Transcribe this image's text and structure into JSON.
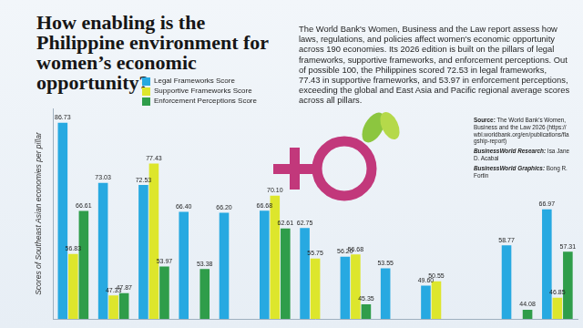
{
  "chart_data": {
    "type": "bar",
    "title": "How enabling is the Philippine environment for women’s economic opportunity?",
    "subtitle": "The World Bank's Women, Business and the Law report assess how laws, regulations, and policies affect women's economic opportunity across 190 economies. Its 2026 edition is built on the pillars of legal frameworks, supportive frameworks, and enforcement perceptions. Out of possible 100, the Philippines scored 72.53 in legal frameworks, 77.43 in supportive frameworks, and 53.97 in enforcement perceptions, exceeding the global and East Asia and Pacific regional average scores across all pillars.",
    "annotations": [
      "Source: The World Bank's Women, Business and the Law 2026 (https://wbl.worldbank.org/en/publications/flagship-report)",
      "BusinessWorld Research: Isa Jane D. Acabal",
      "BusinessWorld Graphics: Bong R. Fortin"
    ],
    "y_label": "Scores of Southeast Asian economies per pillar",
    "categories": [
      null,
      null,
      null,
      null,
      null,
      null,
      null,
      null,
      null,
      null,
      null,
      null,
      null
    ],
    "series": [
      {
        "name": "Legal Frameworks Score",
        "color": "#27a9e1",
        "values": [
          86.73,
          73.03,
          72.53,
          66.4,
          66.2,
          66.68,
          62.75,
          56.2,
          53.55,
          49.6,
          null,
          58.77,
          66.97
        ],
        "value_labels": [
          "86.73",
          "73.03",
          "72.53",
          "66.40",
          "66.20",
          "66.68",
          "62.75",
          "56.20",
          "53.55",
          "49.60",
          null,
          "58.77",
          "66.97"
        ]
      },
      {
        "name": "Supportive Frameworks Score",
        "color": "#dde62c",
        "values": [
          56.83,
          47.33,
          77.43,
          null,
          null,
          70.1,
          55.75,
          56.68,
          null,
          50.55,
          null,
          null,
          46.85
        ],
        "value_labels": [
          "56.83",
          "47.33",
          "77.43",
          null,
          null,
          "70.10",
          "55.75",
          "56.68",
          null,
          "50.55",
          null,
          null,
          "46.85"
        ]
      },
      {
        "name": "Enforcement Perceptions Score",
        "color": "#2f9d4a",
        "values": [
          66.61,
          47.87,
          53.97,
          53.38,
          null,
          62.61,
          null,
          45.35,
          null,
          null,
          null,
          44.08,
          57.31
        ],
        "value_labels": [
          "66.61",
          "47.87",
          "53.97",
          "53.38",
          null,
          "62.61",
          null,
          "45.35",
          null,
          null,
          null,
          "44.08",
          "57.31"
        ]
      }
    ],
    "ylim": [
      42,
      90
    ],
    "grid": false,
    "legend": "top",
    "data_labels": true,
    "tick_labels": false
  }
}
